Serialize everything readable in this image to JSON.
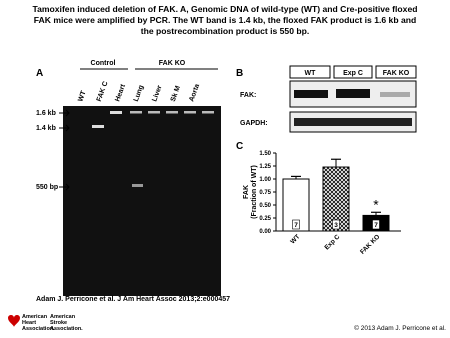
{
  "title": {
    "lines": [
      "Tamoxifen induced deletion of FAK. A, Genomic DNA of wild-type (WT) and Cre-positive floxed",
      "FAK mice were amplified by PCR. The WT band is 1.4 kb, the floxed FAK product is 1.6 kb and",
      "the postrecombination product is 550 bp."
    ]
  },
  "panel_a": {
    "label": "A",
    "groups": [
      "Control",
      "FAK KO"
    ],
    "lanes": [
      "WT",
      "FAK C",
      "Heart",
      "Lung",
      "Liver",
      "Sk M",
      "Aorta"
    ],
    "markers": [
      "1.6 kb",
      "1.4 kb",
      "550 bp"
    ]
  },
  "panel_b": {
    "label": "B",
    "columns": [
      "WT",
      "Exp C",
      "FAK KO"
    ],
    "rows": [
      "FAK:",
      "GAPDH:"
    ]
  },
  "panel_c": {
    "label": "C"
  },
  "chart_data": {
    "type": "bar",
    "y_label": [
      "FAK",
      "(Fraction of WT)"
    ],
    "categories": [
      "WT",
      "Exp C",
      "FAK KO"
    ],
    "values": [
      1.0,
      1.23,
      0.3
    ],
    "errors": [
      0.05,
      0.15,
      0.06
    ],
    "n": [
      7,
      3,
      7
    ],
    "fills": [
      "white",
      "crosshatch",
      "black"
    ],
    "annotation": "*",
    "ylim": [
      0,
      1.5
    ],
    "yticks": [
      {
        "value": 0,
        "label": "0.00"
      },
      {
        "value": 0.25,
        "label": "0.25"
      },
      {
        "value": 0.5,
        "label": "0.50"
      },
      {
        "value": 0.75,
        "label": "0.75"
      },
      {
        "value": 1,
        "label": "1.00"
      },
      {
        "value": 1.25,
        "label": "1.25"
      },
      {
        "value": 1.5,
        "label": "1.50"
      }
    ]
  },
  "footer": {
    "citation": "Adam J. Perricone et al. J Am Heart Assoc 2013;2:e000457",
    "logo1": [
      "American",
      "Heart",
      "Association."
    ],
    "logo2": [
      "American",
      "Stroke",
      "Association."
    ],
    "copyright": "© 2013 Adam J. Perricone et al."
  }
}
